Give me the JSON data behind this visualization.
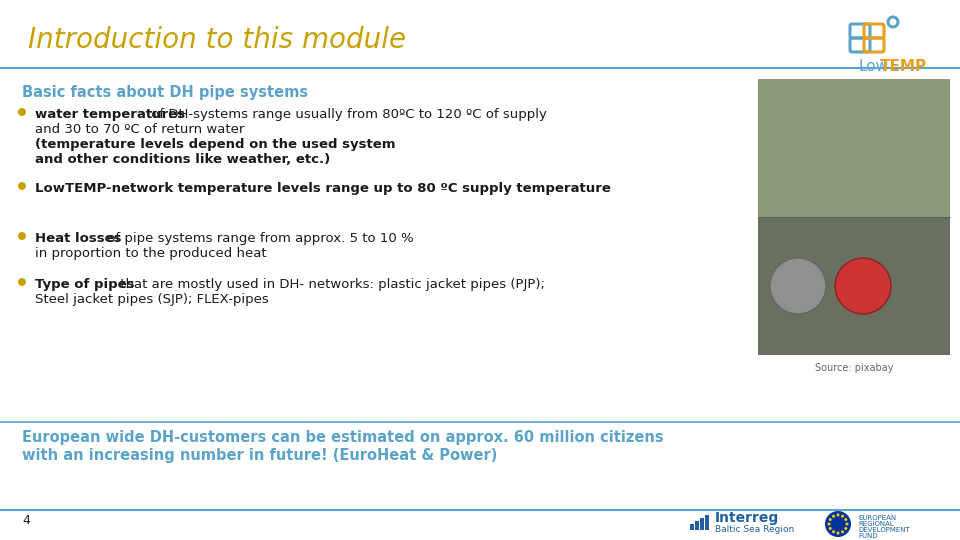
{
  "title": "Introduction to this module",
  "title_color": "#c8a008",
  "title_fontsize": 20,
  "bg_color": "#ffffff",
  "header_line_color": "#5ba3c9",
  "section_heading": "Basic facts about DH pipe systems",
  "section_heading_color": "#5ba3c9",
  "section_heading_fontsize": 10.5,
  "bullet_color": "#c8a008",
  "bullet1_bold": "water temperatures",
  "bullet1_normal": " of DH-systems range usually from 80ºC to 120 ºC of supply",
  "bullet1_line2": "and 30 to 70 ºC of return water",
  "bullet1_line3": "(temperature levels depend on the used system",
  "bullet1_line4": "and other conditions like weather, etc.)",
  "bullet2_text": "LowTEMP-network temperature levels range up to 80 ºC supply temperature",
  "bullet3_bold": "Heat losses",
  "bullet3_normal": " of pipe systems range from approx. 5 to 10 %",
  "bullet3_line2": "in proportion to the produced heat",
  "bullet4_bold": "Type of pipes",
  "bullet4_normal": " that are mostly used in DH- networks: plastic jacket pipes (PJP);",
  "bullet4_line2": "Steel jacket pipes (SJP); FLEX-pipes",
  "footer_text1": "European wide DH-customers can be estimated on approx. 60 million citizens",
  "footer_text2": "with an increasing number in future! (EuroHeat & Power)",
  "footer_text_color": "#5ba3c9",
  "footer_text_fontsize": 10.5,
  "page_number": "4",
  "source_caption": "Source: pixabay",
  "text_color": "#1a1a1a",
  "text_fontsize": 9.5,
  "lowtemp_low_color": "#5ba3c9",
  "lowtemp_temp_color": "#e8a020"
}
